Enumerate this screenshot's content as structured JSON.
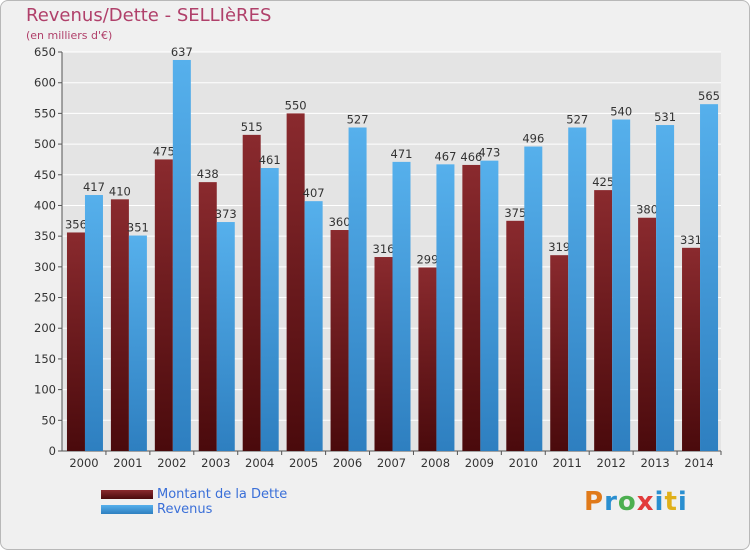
{
  "chart_data": {
    "type": "bar",
    "title": "Revenus/Dette - SELLIèRES",
    "subtitle": "(en milliers d'€)",
    "categories": [
      "2000",
      "2001",
      "2002",
      "2003",
      "2004",
      "2005",
      "2006",
      "2007",
      "2008",
      "2009",
      "2010",
      "2011",
      "2012",
      "2013",
      "2014"
    ],
    "series": [
      {
        "name": "Montant de la Dette",
        "color": "#7a1e22",
        "values": [
          356,
          410,
          475,
          438,
          515,
          550,
          360,
          316,
          299,
          466,
          375,
          319,
          425,
          380,
          331
        ]
      },
      {
        "name": "Revenus",
        "color": "#3f9fe0",
        "values": [
          417,
          351,
          637,
          373,
          461,
          407,
          527,
          471,
          467,
          473,
          496,
          527,
          540,
          531,
          565
        ]
      }
    ],
    "ylim": [
      0,
      650
    ],
    "yticks": [
      0,
      50,
      100,
      150,
      200,
      250,
      300,
      350,
      400,
      450,
      500,
      550,
      600,
      650
    ],
    "grid": true,
    "legend_position": "bottom-left"
  },
  "logo": {
    "text": "Proxiti"
  }
}
